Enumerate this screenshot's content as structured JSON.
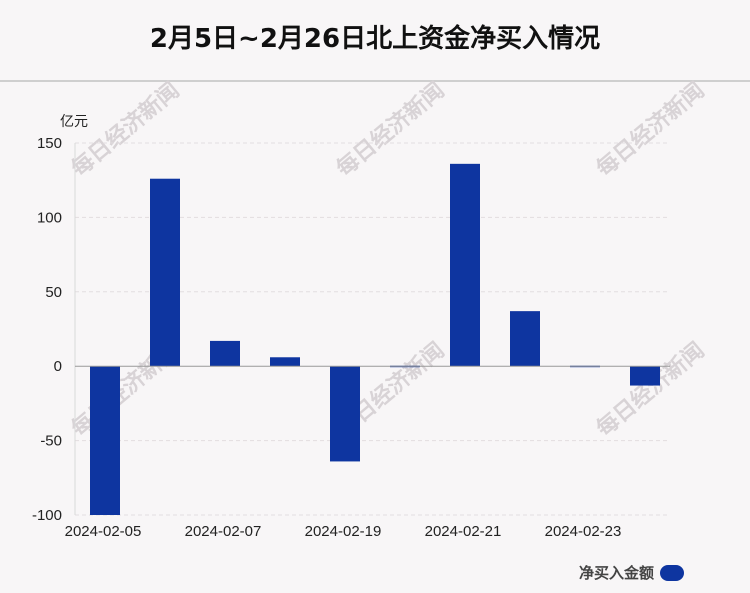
{
  "header": {
    "title": "2月5日~2月26日北上资金净买入情况"
  },
  "watermark": {
    "text": "每日经济新闻"
  },
  "legend": {
    "label": "净买入金额"
  },
  "colors": {
    "bar": "#0e35a0",
    "grid": "#e2dde0",
    "axis": "#999999"
  },
  "chart_data": {
    "type": "bar",
    "ylabel": "亿元",
    "ylim": [
      -100,
      150
    ],
    "yticks": [
      150,
      100,
      50,
      0,
      -50,
      -100
    ],
    "xticks": [
      "2024-02-05",
      "2024-02-07",
      "2024-02-19",
      "2024-02-21",
      "2024-02-23"
    ],
    "series": [
      {
        "name": "净买入金额",
        "values": [
          -100,
          126,
          17,
          6,
          -64,
          -1,
          136,
          37,
          -0.5,
          -13
        ]
      }
    ]
  }
}
